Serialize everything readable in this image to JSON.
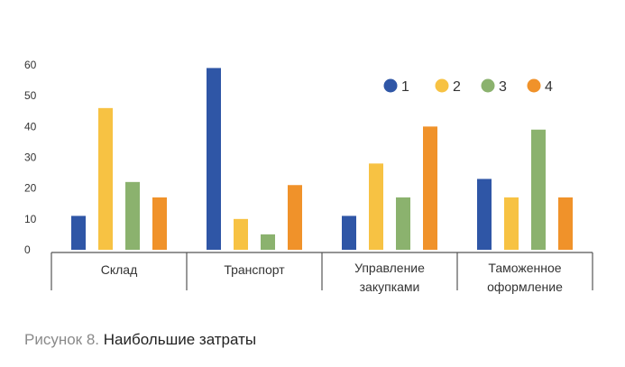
{
  "caption": {
    "prefix": "Рисунок 8.",
    "title": "Наибольшие затраты"
  },
  "chart_data": {
    "type": "bar",
    "categories": [
      [
        "Склад"
      ],
      [
        "Транспорт"
      ],
      [
        "Управление",
        "закупками"
      ],
      [
        "Таможенное",
        "оформление"
      ]
    ],
    "yticks": [
      0,
      10,
      20,
      30,
      40,
      50,
      60
    ],
    "ylim": [
      0,
      60
    ],
    "grid": false,
    "legend_position": "top-right",
    "series": [
      {
        "name": "1",
        "color": "#2f56a6",
        "values": [
          11,
          59,
          11,
          23
        ]
      },
      {
        "name": "2",
        "color": "#f7c243",
        "values": [
          46,
          10,
          28,
          17
        ]
      },
      {
        "name": "3",
        "color": "#8bb26e",
        "values": [
          22,
          5,
          17,
          39
        ]
      },
      {
        "name": "4",
        "color": "#f0922a",
        "values": [
          17,
          21,
          40,
          17
        ]
      }
    ]
  }
}
